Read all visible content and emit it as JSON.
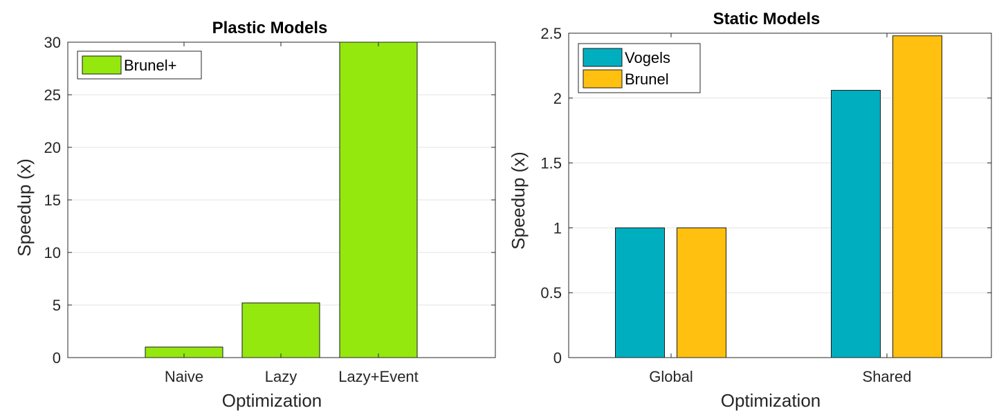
{
  "chart_data": [
    {
      "type": "bar",
      "title": "Plastic Models",
      "xlabel": "Optimization",
      "ylabel": "Speedup (x)",
      "categories": [
        "Naive",
        "Lazy",
        "Lazy+Event"
      ],
      "series": [
        {
          "name": "Brunel+",
          "values": [
            1,
            5.2,
            30
          ],
          "color": "#94e80e"
        }
      ],
      "ylim": [
        0,
        30
      ],
      "yticks": [
        0,
        5,
        10,
        15,
        20,
        25,
        30
      ],
      "grid": "horizontal",
      "legend": "top-left"
    },
    {
      "type": "bar",
      "title": "Static Models",
      "xlabel": "Optimization",
      "ylabel": "Speedup (x)",
      "categories": [
        "Global",
        "Shared"
      ],
      "series": [
        {
          "name": "Vogels",
          "values": [
            1,
            2.06
          ],
          "color": "#00afbf"
        },
        {
          "name": "Brunel",
          "values": [
            1,
            2.48
          ],
          "color": "#ffc010"
        }
      ],
      "ylim": [
        0,
        2.5
      ],
      "yticks": [
        0,
        0.5,
        1,
        1.5,
        2,
        2.5
      ],
      "grid": "horizontal",
      "legend": "top-left"
    }
  ]
}
